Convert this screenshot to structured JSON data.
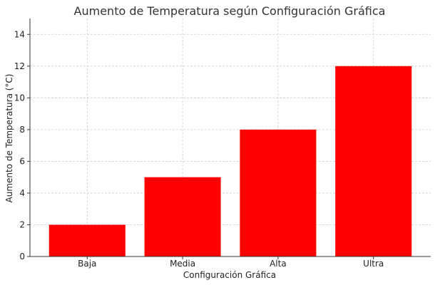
{
  "chart_data": {
    "type": "bar",
    "title": "Aumento de Temperatura según Configuración Gráfica",
    "xlabel": "Configuración Gráfica",
    "ylabel": "Aumento de Temperatura (°C)",
    "categories": [
      "Baja",
      "Media",
      "Alta",
      "Ultra"
    ],
    "values": [
      2,
      5,
      8,
      12
    ],
    "ylim": [
      0,
      15
    ],
    "yticks": [
      0,
      2,
      4,
      6,
      8,
      10,
      12,
      14
    ],
    "bar_color": "#ff0000",
    "grid": true
  }
}
